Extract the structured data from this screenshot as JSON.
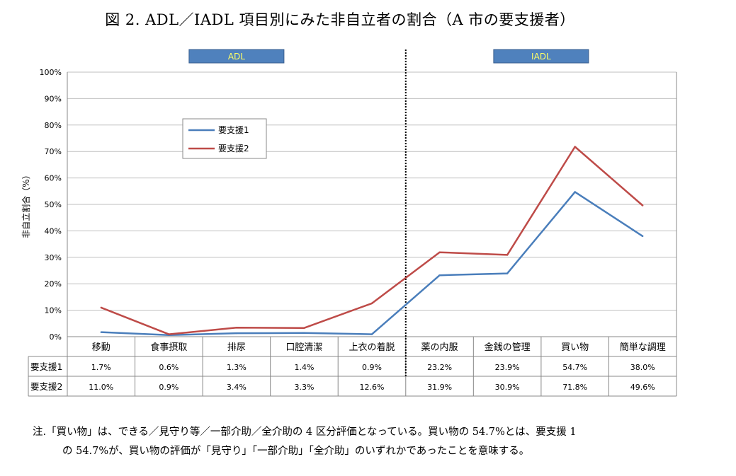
{
  "title": "図 2. ADL／IADL 項目別にみた非自立者の割合（A 市の要支援者）",
  "section_labels": {
    "adl": "ADL",
    "iadl": "IADL"
  },
  "note": {
    "line1": "注.「買い物」は、できる／見守り等／一部介助／全介助の 4 区分評価となっている。買い物の 54.7%とは、要支援 1",
    "line2": "の 54.7%が、買い物の評価が「見守り」「一部介助」「全介助」のいずれかであったことを意味する。"
  },
  "colors": {
    "series1": "#4a7ebb",
    "series2": "#be4b48",
    "section_box": "#4f81bd",
    "section_text": "#ffff66",
    "grid": "#bfbfbf"
  },
  "chart_data": {
    "type": "line",
    "ylabel": "非自立割合（%）",
    "ylim": [
      0,
      100
    ],
    "yticks": [
      "0%",
      "10%",
      "20%",
      "30%",
      "40%",
      "50%",
      "60%",
      "70%",
      "80%",
      "90%",
      "100%"
    ],
    "grid": true,
    "legend_position": "upper-left inside plot",
    "categories": [
      "移動",
      "食事摂取",
      "排尿",
      "口腔清潔",
      "上衣の着脱",
      "薬の内服",
      "金銭の管理",
      "買い物",
      "簡単な調理"
    ],
    "series": [
      {
        "name": "要支援1",
        "values": [
          1.7,
          0.6,
          1.3,
          1.4,
          0.9,
          23.2,
          23.9,
          54.7,
          38.0
        ],
        "labels": [
          "1.7%",
          "0.6%",
          "1.3%",
          "1.4%",
          "0.9%",
          "23.2%",
          "23.9%",
          "54.7%",
          "38.0%"
        ]
      },
      {
        "name": "要支援2",
        "values": [
          11.0,
          0.9,
          3.4,
          3.3,
          12.6,
          31.9,
          30.9,
          71.8,
          49.6
        ],
        "labels": [
          "11.0%",
          "0.9%",
          "3.4%",
          "3.3%",
          "12.6%",
          "31.9%",
          "30.9%",
          "71.8%",
          "49.6%"
        ]
      }
    ],
    "adl_count": 5
  }
}
